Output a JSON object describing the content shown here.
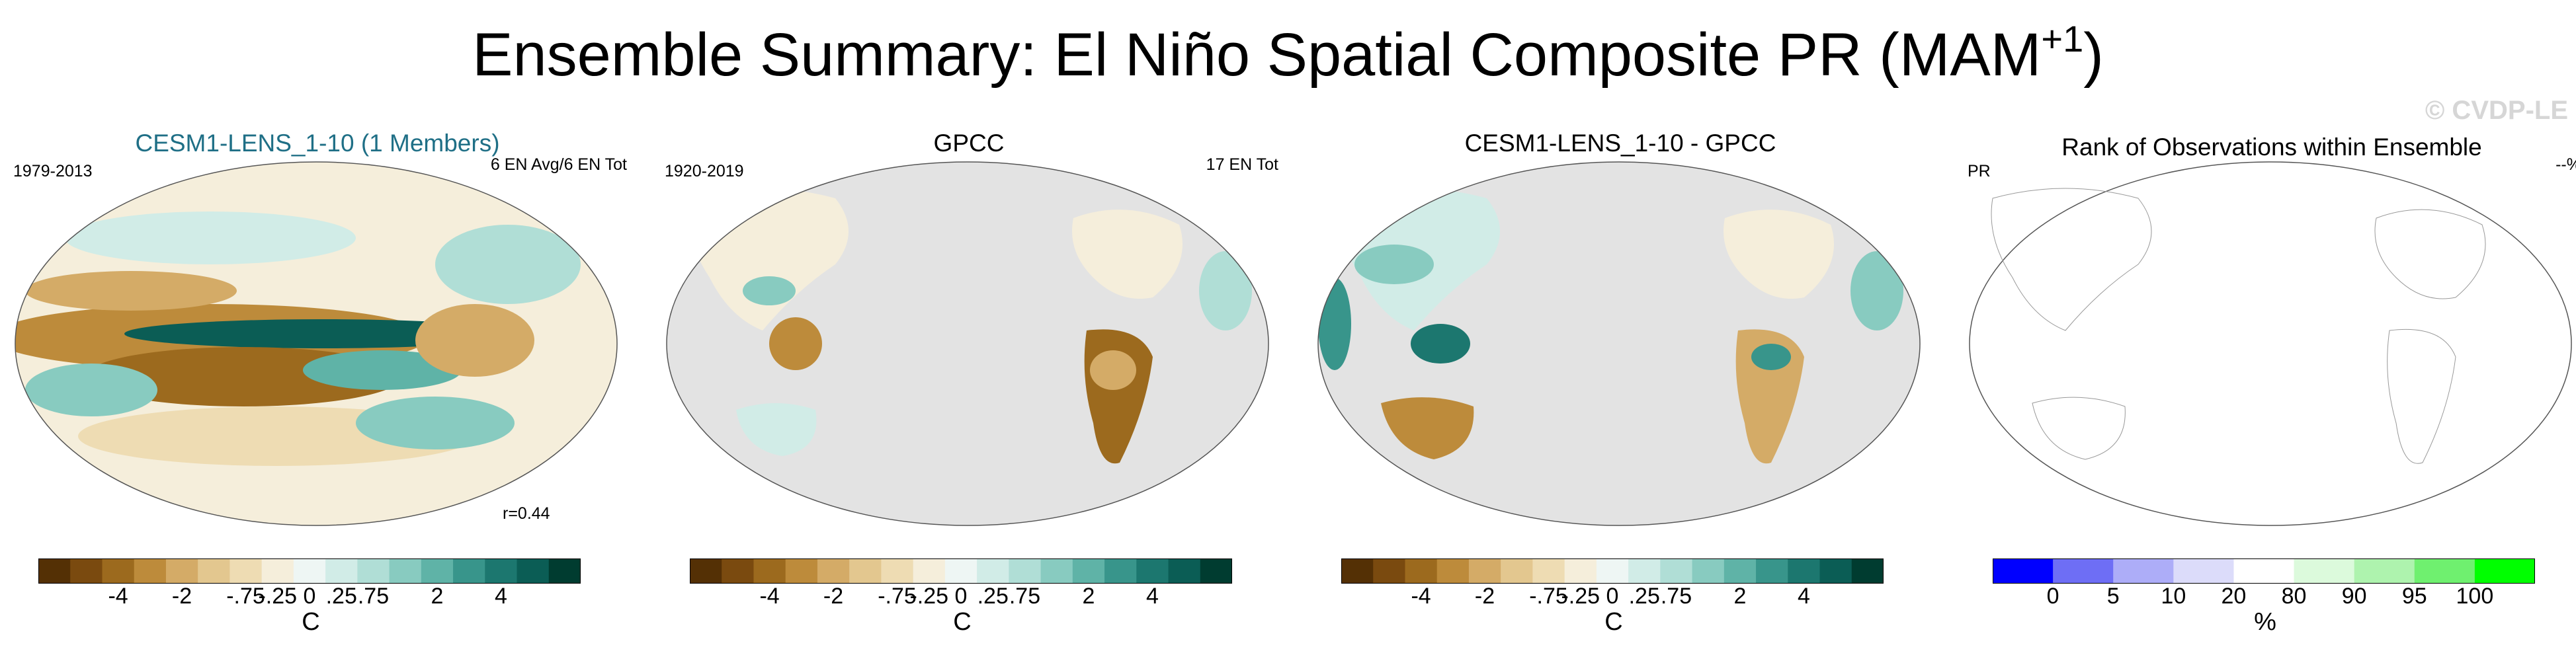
{
  "title": "Ensemble Summary: El Niño Spatial Composite PR (MAM",
  "title_sup": "+1",
  "title_close": ")",
  "watermark": "© CVDP-LE",
  "colors": {
    "brown_teal_scale": [
      "#543005",
      "#7a4a0f",
      "#9c6a1e",
      "#bd8b3b",
      "#d4ab67",
      "#e3c78f",
      "#eedcb3",
      "#f5eedb",
      "#eef6f4",
      "#d1ece7",
      "#b0ded6",
      "#88cbc0",
      "#5fb3a7",
      "#38958b",
      "#1c776f",
      "#0b5d55",
      "#003c30"
    ],
    "rank_scale": [
      "#0000ff",
      "#6e6ef5",
      "#adadf8",
      "#dcdcfa",
      "#ffffff",
      "#dcfadc",
      "#aef3ae",
      "#6ff06f",
      "#00ff00"
    ],
    "land_gray": "#e3e3e3"
  },
  "panels": [
    {
      "title": "CESM1-LENS_1-10 (1 Members)",
      "left_text": "1979-2013",
      "right_text": "6 EN Avg/6 EN Tot",
      "corner_text": "r=0.44",
      "colorbar_ticks": [
        "-4",
        "-2",
        "-.75",
        "-.25",
        "0",
        ".25",
        ".75",
        "2",
        "4"
      ],
      "unit": "C"
    },
    {
      "title": "GPCC",
      "left_text": "1920-2019",
      "right_text": "17 EN Tot",
      "colorbar_ticks": [
        "-4",
        "-2",
        "-.75",
        "-.25",
        "0",
        ".25",
        ".75",
        "2",
        "4"
      ],
      "unit": "C"
    },
    {
      "title": "CESM1-LENS_1-10 - GPCC",
      "colorbar_ticks": [
        "-4",
        "-2",
        "-.75",
        "-.25",
        "0",
        ".25",
        ".75",
        "2",
        "4"
      ],
      "unit": "C"
    },
    {
      "title": "Rank of Observations within Ensemble",
      "left_text": "PR",
      "right_text": "--%",
      "colorbar_ticks": [
        "0",
        "5",
        "10",
        "20",
        "80",
        "90",
        "95",
        "100"
      ],
      "unit": "%"
    }
  ]
}
